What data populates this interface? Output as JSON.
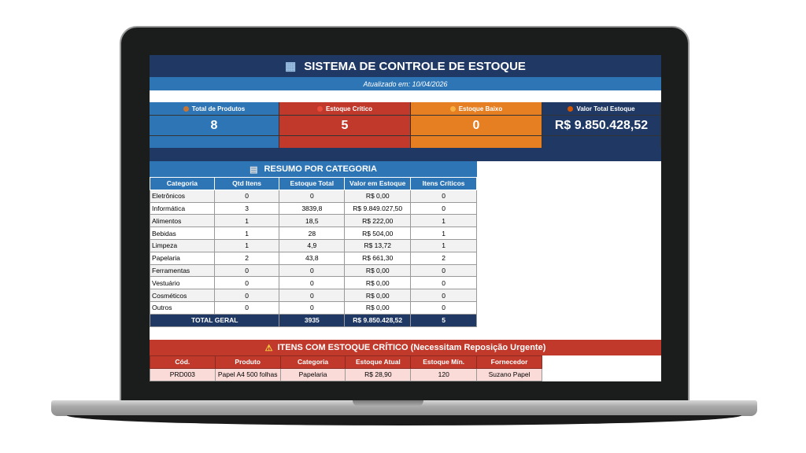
{
  "header": {
    "icon": "building-icon",
    "title": "SISTEMA DE CONTROLE DE ESTOQUE",
    "updated": "Atualizado em: 10/04/2026"
  },
  "cards": [
    {
      "label": "Total de Produtos",
      "value": "8",
      "color": "#2e75b6",
      "icon": "box-icon"
    },
    {
      "label": "Estoque Crítico",
      "value": "5",
      "color": "#c0392b",
      "icon": "red-circle-icon"
    },
    {
      "label": "Estoque Baixo",
      "value": "0",
      "color": "#e67e22",
      "icon": "yellow-circle-icon"
    },
    {
      "label": "Valor Total Estoque",
      "value": "R$ 9.850.428,52",
      "color": "#1f3864",
      "icon": "money-bag-icon"
    }
  ],
  "summary": {
    "title": "RESUMO POR CATEGORIA",
    "icon": "clipboard-icon",
    "columns": [
      "Categoria",
      "Qtd Itens",
      "Estoque Total",
      "Valor em Estoque",
      "Itens Críticos"
    ],
    "rows": [
      [
        "Eletrônicos",
        "0",
        "0",
        "R$ 0,00",
        "0"
      ],
      [
        "Informática",
        "3",
        "3839,8",
        "R$ 9.849.027,50",
        "0"
      ],
      [
        "Alimentos",
        "1",
        "18,5",
        "R$ 222,00",
        "1"
      ],
      [
        "Bebidas",
        "1",
        "28",
        "R$ 504,00",
        "1"
      ],
      [
        "Limpeza",
        "1",
        "4,9",
        "R$ 13,72",
        "1"
      ],
      [
        "Papelaria",
        "2",
        "43,8",
        "R$ 661,30",
        "2"
      ],
      [
        "Ferramentas",
        "0",
        "0",
        "R$ 0,00",
        "0"
      ],
      [
        "Vestuário",
        "0",
        "0",
        "R$ 0,00",
        "0"
      ],
      [
        "Cosméticos",
        "0",
        "0",
        "R$ 0,00",
        "0"
      ],
      [
        "Outros",
        "0",
        "0",
        "R$ 0,00",
        "0"
      ]
    ],
    "total": [
      "TOTAL GERAL",
      "3935",
      "R$ 9.850.428,52",
      "5"
    ]
  },
  "critical": {
    "title": "ITENS COM ESTOQUE CRÍTICO (Necessitam Reposição Urgente)",
    "icon": "warning-icon",
    "columns": [
      "Cód.",
      "Produto",
      "Categoria",
      "Estoque Atual",
      "Estoque Mín.",
      "Fornecedor"
    ],
    "rows": [
      [
        "PRD003",
        "Papel A4 500 folhas",
        "Papelaria",
        "R$ 28,90",
        "120",
        "Suzano Papel"
      ]
    ]
  }
}
